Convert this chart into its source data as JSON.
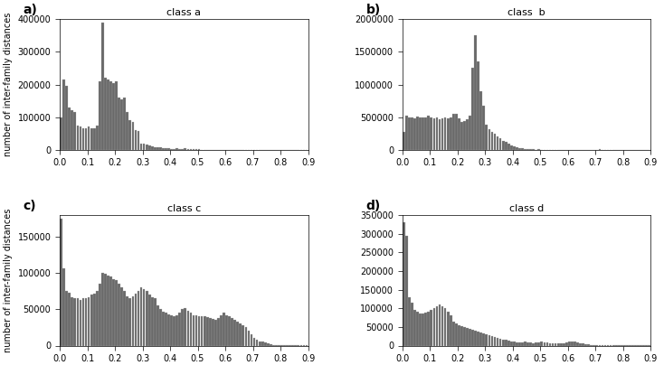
{
  "title_a": "class a",
  "title_b": "class  b",
  "title_c": "class c",
  "title_d": "class d",
  "ylabel": "number of inter-family distances",
  "bar_color": "#696969",
  "bin_width": 0.01,
  "xlim": [
    0.0,
    0.9
  ],
  "xticks": [
    0.0,
    0.1,
    0.2,
    0.3,
    0.4,
    0.5,
    0.6,
    0.7,
    0.8,
    0.9
  ],
  "ylim_a": [
    0,
    400000
  ],
  "ylim_b": [
    0,
    2000000
  ],
  "ylim_c": [
    0,
    180000
  ],
  "ylim_d": [
    0,
    350000
  ],
  "hist_a": [
    100000,
    215000,
    195000,
    130000,
    120000,
    115000,
    75000,
    70000,
    65000,
    65000,
    70000,
    65000,
    65000,
    75000,
    210000,
    390000,
    220000,
    215000,
    210000,
    205000,
    210000,
    160000,
    155000,
    160000,
    115000,
    90000,
    85000,
    60000,
    57000,
    20000,
    18000,
    15000,
    12000,
    10000,
    8000,
    8000,
    7000,
    5000,
    5000,
    4000,
    3000,
    2000,
    4000,
    2000,
    1000,
    4000,
    2000,
    1000,
    1000,
    1000,
    1000,
    500,
    500,
    500,
    500,
    500,
    500,
    500,
    500,
    500,
    500,
    500,
    500,
    500,
    500,
    500,
    500,
    500,
    500,
    500,
    500,
    500,
    500,
    500,
    500,
    500,
    500,
    500,
    500,
    500,
    500,
    500,
    500,
    500,
    500,
    500,
    500,
    500,
    500,
    500
  ],
  "hist_b": [
    280000,
    520000,
    490000,
    500000,
    480000,
    510000,
    500000,
    490000,
    490000,
    520000,
    500000,
    480000,
    490000,
    470000,
    480000,
    490000,
    480000,
    500000,
    550000,
    550000,
    480000,
    420000,
    440000,
    470000,
    520000,
    1250000,
    1750000,
    1350000,
    900000,
    680000,
    390000,
    310000,
    280000,
    240000,
    200000,
    170000,
    140000,
    120000,
    90000,
    70000,
    50000,
    40000,
    30000,
    20000,
    15000,
    10000,
    8000,
    5000,
    3000,
    10000,
    3000,
    2000,
    1000,
    1000,
    1000,
    1000,
    1000,
    500,
    500,
    500,
    500,
    500,
    500,
    500,
    500,
    500,
    500,
    500,
    500,
    500,
    500,
    5000,
    2000,
    1000,
    500,
    500,
    500,
    500,
    500,
    500,
    500,
    500,
    500,
    500,
    500,
    500,
    500,
    500,
    500,
    500
  ],
  "hist_c": [
    175000,
    106000,
    75000,
    73000,
    67000,
    66000,
    65000,
    63000,
    65000,
    65000,
    67000,
    70000,
    72000,
    75000,
    85000,
    100000,
    99000,
    97000,
    95000,
    92000,
    90000,
    85000,
    80000,
    75000,
    68000,
    65000,
    68000,
    72000,
    75000,
    80000,
    78000,
    75000,
    70000,
    67000,
    65000,
    55000,
    50000,
    47000,
    45000,
    43000,
    42000,
    40000,
    42000,
    45000,
    50000,
    52000,
    48000,
    45000,
    42000,
    42000,
    40000,
    41000,
    40000,
    39000,
    38000,
    37000,
    36000,
    38000,
    42000,
    45000,
    42000,
    40000,
    38000,
    35000,
    33000,
    30000,
    28000,
    25000,
    20000,
    15000,
    10000,
    8000,
    6000,
    5000,
    4000,
    3000,
    2000,
    1000,
    500,
    500,
    500,
    500,
    500,
    500,
    500,
    500,
    500,
    500,
    500,
    500
  ],
  "hist_d": [
    330000,
    295000,
    130000,
    115000,
    95000,
    90000,
    85000,
    85000,
    88000,
    90000,
    95000,
    100000,
    105000,
    110000,
    105000,
    100000,
    90000,
    80000,
    65000,
    60000,
    55000,
    52000,
    50000,
    48000,
    45000,
    42000,
    40000,
    38000,
    35000,
    32000,
    30000,
    27000,
    25000,
    22000,
    20000,
    18000,
    16000,
    15000,
    13000,
    12000,
    10000,
    9000,
    8000,
    8000,
    10000,
    9000,
    8000,
    7000,
    8000,
    8000,
    10000,
    9000,
    8000,
    7000,
    6000,
    5000,
    5000,
    5000,
    7000,
    9000,
    10000,
    12000,
    10000,
    8000,
    6000,
    5000,
    4000,
    3000,
    2000,
    1500,
    1000,
    500,
    500,
    500,
    500,
    500,
    500,
    500,
    500,
    500,
    500,
    500,
    500,
    500,
    500,
    500,
    500,
    500,
    500,
    500
  ]
}
